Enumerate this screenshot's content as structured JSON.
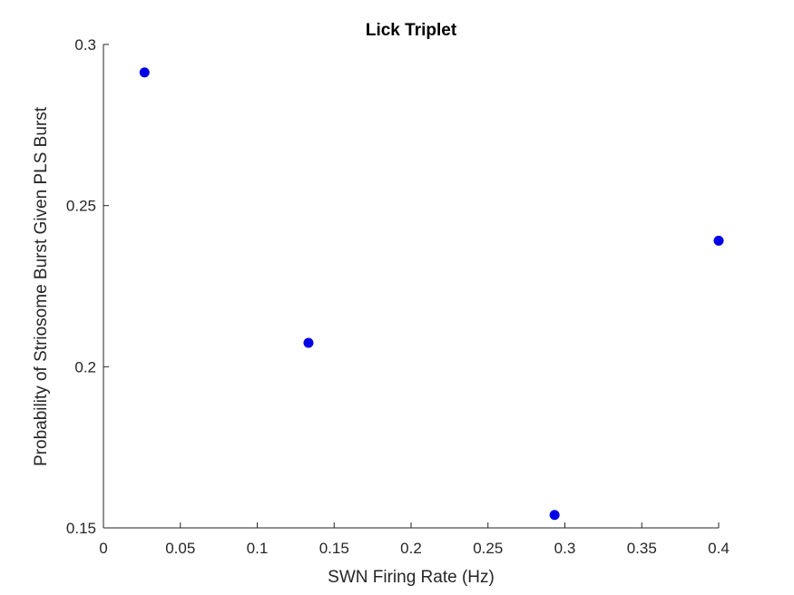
{
  "chart_data": {
    "type": "scatter",
    "title": "Lick Triplet",
    "xlabel": "SWN Firing Rate (Hz)",
    "ylabel": "Probability of Striosome Burst Given PLS Burst",
    "xlim": [
      0,
      0.4
    ],
    "ylim": [
      0.15,
      0.3
    ],
    "xticks": [
      0,
      0.05,
      0.1,
      0.15,
      0.2,
      0.25,
      0.3,
      0.35,
      0.4
    ],
    "xtick_labels": [
      "0",
      "0.05",
      "0.1",
      "0.15",
      "0.2",
      "0.25",
      "0.3",
      "0.35",
      "0.4"
    ],
    "yticks": [
      0.15,
      0.2,
      0.25,
      0.3
    ],
    "ytick_labels": [
      "0.15",
      "0.2",
      "0.25",
      "0.3"
    ],
    "grid": false,
    "series": [
      {
        "color": "#0000e6",
        "points": [
          {
            "x": 0.0267,
            "y": 0.2913
          },
          {
            "x": 0.1333,
            "y": 0.2074
          },
          {
            "x": 0.2933,
            "y": 0.154
          },
          {
            "x": 0.4,
            "y": 0.2391
          }
        ]
      }
    ]
  }
}
